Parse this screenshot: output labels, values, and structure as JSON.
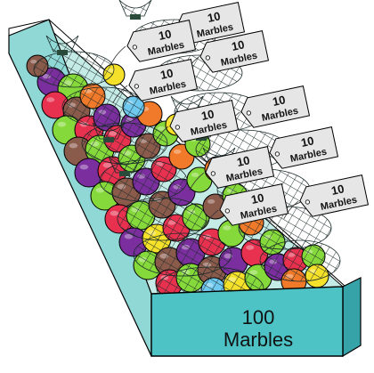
{
  "box": {
    "count_label": "100",
    "unit_label": "Marbles"
  },
  "tags": [
    {
      "number": "10",
      "word": "Marbles"
    },
    {
      "number": "10",
      "word": "Marbles"
    },
    {
      "number": "10",
      "word": "Marbles"
    },
    {
      "number": "10",
      "word": "Marbles"
    },
    {
      "number": "10",
      "word": "Marbles"
    },
    {
      "number": "10",
      "word": "Marbles"
    },
    {
      "number": "10",
      "word": "Marbles"
    },
    {
      "number": "10",
      "word": "Marbles"
    },
    {
      "number": "10",
      "word": "Marbles"
    },
    {
      "number": "10",
      "word": "Marbles"
    }
  ],
  "colors": {
    "box_teal": "#4ec3c6",
    "box_side": "#8fd8d6",
    "box_inner": "#c5ebe6",
    "purple": "#7b2f9e",
    "green": "#86d93a",
    "red": "#e8314f",
    "brown": "#8a5a4a",
    "orange": "#f07a2a",
    "yellow": "#f5e12a",
    "blue": "#6fc8ee"
  }
}
